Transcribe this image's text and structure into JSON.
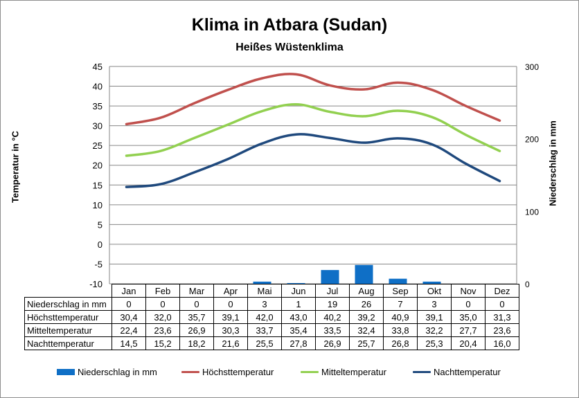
{
  "chart_data": {
    "type": "line",
    "title": "Klima in Atbara (Sudan)",
    "subtitle": "Heißes Wüstenklima",
    "ylabel": "Temperatur in °C",
    "ylabel_right": "Niederschlag in mm",
    "ylim": [
      -10,
      45
    ],
    "ylim_right": [
      0,
      300
    ],
    "yticks": [
      "45",
      "40",
      "35",
      "30",
      "25",
      "20",
      "15",
      "10",
      "5",
      "0",
      "-5",
      "-10"
    ],
    "yticks_right": [
      "300",
      "200",
      "100",
      "0"
    ],
    "grid": true,
    "legend_position": "bottom",
    "categories": [
      "Jan",
      "Feb",
      "Mar",
      "Apr",
      "Mai",
      "Jun",
      "Jul",
      "Aug",
      "Sep",
      "Okt",
      "Nov",
      "Dez"
    ],
    "series": [
      {
        "name": "Niederschlag in mm",
        "type": "bar",
        "axis": "right",
        "color": "#0f6fc6",
        "values": [
          0,
          0,
          0,
          0,
          3,
          1,
          19,
          26,
          7,
          3,
          0,
          0
        ]
      },
      {
        "name": "Höchsttemperatur",
        "type": "line",
        "axis": "left",
        "color": "#c0504d",
        "values": [
          30.4,
          32.0,
          35.7,
          39.1,
          42.0,
          43.0,
          40.2,
          39.2,
          40.9,
          39.1,
          35.0,
          31.3
        ]
      },
      {
        "name": "Mitteltemperatur",
        "type": "line",
        "axis": "left",
        "color": "#92d050",
        "values": [
          22.4,
          23.6,
          26.9,
          30.3,
          33.7,
          35.4,
          33.5,
          32.4,
          33.8,
          32.2,
          27.7,
          23.6
        ]
      },
      {
        "name": "Nachttemperatur",
        "type": "line",
        "axis": "left",
        "color": "#1f497d",
        "values": [
          14.5,
          15.2,
          18.2,
          21.6,
          25.5,
          27.8,
          26.9,
          25.7,
          26.8,
          25.3,
          20.4,
          16.0
        ]
      }
    ],
    "table": {
      "rows": [
        {
          "label": "Niederschlag in mm",
          "cells": [
            "0",
            "0",
            "0",
            "0",
            "3",
            "1",
            "19",
            "26",
            "7",
            "3",
            "0",
            "0"
          ]
        },
        {
          "label": "Höchsttemperatur",
          "cells": [
            "30,4",
            "32,0",
            "35,7",
            "39,1",
            "42,0",
            "43,0",
            "40,2",
            "39,2",
            "40,9",
            "39,1",
            "35,0",
            "31,3"
          ]
        },
        {
          "label": "Mitteltemperatur",
          "cells": [
            "22,4",
            "23,6",
            "26,9",
            "30,3",
            "33,7",
            "35,4",
            "33,5",
            "32,4",
            "33,8",
            "32,2",
            "27,7",
            "23,6"
          ]
        },
        {
          "label": "Nachttemperatur",
          "cells": [
            "14,5",
            "15,2",
            "18,2",
            "21,6",
            "25,5",
            "27,8",
            "26,9",
            "25,7",
            "26,8",
            "25,3",
            "20,4",
            "16,0"
          ]
        }
      ]
    }
  }
}
